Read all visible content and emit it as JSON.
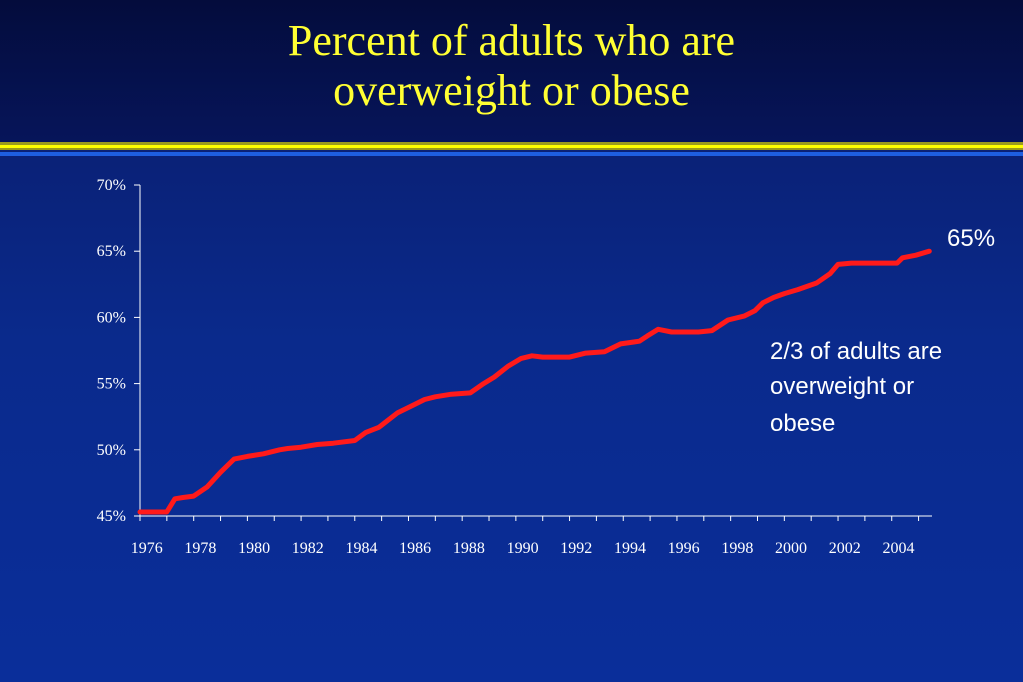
{
  "slide": {
    "title_line1": "Percent of adults who are",
    "title_line2": "overweight or obese",
    "colors": {
      "title": "#ffff33",
      "line": "#ff1a1a",
      "background": "#0a2a8c",
      "stripe": "#ffff00"
    }
  },
  "chart_data": {
    "type": "line",
    "xlim": [
      1976,
      2005.5
    ],
    "ylim": [
      45,
      70
    ],
    "y_ticks": [
      "45%",
      "50%",
      "55%",
      "60%",
      "65%",
      "70%"
    ],
    "x_tick_labels": [
      "1976",
      "1978",
      "1980",
      "1982",
      "1984",
      "1986",
      "1988",
      "1990",
      "1992",
      "1994",
      "1996",
      "1998",
      "2000",
      "2002",
      "2004"
    ],
    "series": [
      {
        "x": [
          1976.0,
          1977.0,
          1977.3,
          1977.6,
          1978.0,
          1978.5,
          1979.0,
          1979.5,
          1980.0,
          1980.6,
          1981.2,
          1981.5,
          1982.0,
          1982.6,
          1983.2,
          1984.0,
          1984.4,
          1984.9,
          1985.6,
          1986.1,
          1986.6,
          1987.0,
          1987.6,
          1988.3,
          1988.8,
          1989.2,
          1989.7,
          1990.2,
          1990.6,
          1991.0,
          1992.0,
          1992.6,
          1993.3,
          1993.9,
          1994.6,
          1994.9,
          1995.3,
          1995.8,
          1996.3,
          1996.8,
          1997.3,
          1997.9,
          1998.5,
          1998.9,
          1999.2,
          1999.6,
          2000.0,
          2000.5,
          2001.2,
          2001.7,
          2002.0,
          2002.5,
          2003.0,
          2003.5,
          2004.2,
          2004.4,
          2004.9,
          2005.4
        ],
        "y": [
          45.3,
          45.3,
          46.3,
          46.4,
          46.5,
          47.2,
          48.3,
          49.3,
          49.5,
          49.7,
          50.0,
          50.1,
          50.2,
          50.4,
          50.5,
          50.7,
          51.3,
          51.7,
          52.8,
          53.3,
          53.8,
          54.0,
          54.2,
          54.3,
          55.0,
          55.5,
          56.3,
          56.9,
          57.1,
          57.0,
          57.0,
          57.3,
          57.4,
          58.0,
          58.2,
          58.6,
          59.1,
          58.9,
          58.9,
          58.9,
          59.0,
          59.8,
          60.1,
          60.5,
          61.1,
          61.5,
          61.8,
          62.1,
          62.6,
          63.3,
          64.0,
          64.1,
          64.1,
          64.1,
          64.1,
          64.5,
          64.7,
          65.0
        ]
      }
    ],
    "annotations": {
      "end_value": "65%",
      "note_line1": "2/3 of adults are",
      "note_line2": "overweight or",
      "note_line3": "obese"
    }
  }
}
